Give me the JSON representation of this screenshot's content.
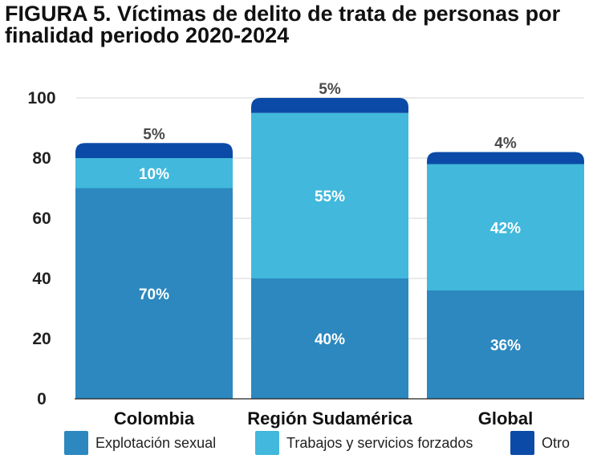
{
  "title_line1": "FIGURA 5. Víctimas de delito de trata de personas por",
  "title_line2": "finalidad periodo 2020-2024",
  "colors": {
    "explotacion": "#2c88bf",
    "trabajos": "#41b8dc",
    "otro": "#0b4ba7",
    "axis": "#222222",
    "grid": "#d4d4d4"
  },
  "chart_data": {
    "type": "bar",
    "stacked": true,
    "categories": [
      "Colombia",
      "Región Sudamérica",
      "Global"
    ],
    "series": [
      {
        "name": "Explotación sexual",
        "values": [
          70,
          40,
          36
        ],
        "labels": [
          "70%",
          "40%",
          "36%"
        ]
      },
      {
        "name": "Trabajos y servicios forzados",
        "values": [
          10,
          55,
          42
        ],
        "labels": [
          "10%",
          "55%",
          "42%"
        ]
      },
      {
        "name": "Otro",
        "values": [
          5,
          5,
          4
        ],
        "labels": [
          "5%",
          "5%",
          "4%"
        ]
      }
    ],
    "ylim": [
      0,
      100
    ],
    "yticks": [
      0,
      20,
      40,
      60,
      80,
      100
    ],
    "grid": true,
    "legend_position": "bottom"
  }
}
